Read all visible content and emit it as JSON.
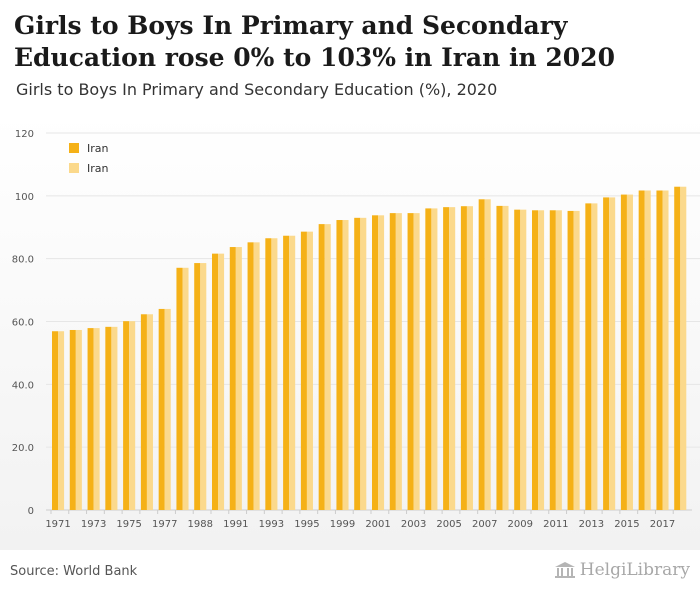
{
  "title": "Girls to Boys In Primary and Secondary Education rose 0% to 103% in Iran in 2020",
  "subtitle": "Girls to Boys In Primary and Secondary Education (%), 2020",
  "source": "Source: World Bank",
  "brand": "HelgiLibrary",
  "colors": {
    "series1": "#f5b117",
    "series2": "#fbd98c",
    "grid": "#e6e6e6",
    "axis_text": "#555555"
  },
  "chart_data": {
    "type": "bar",
    "title": "Girls to Boys In Primary and Secondary Education (%), 2020",
    "xlabel": "",
    "ylabel": "",
    "ylim": [
      0,
      120
    ],
    "yticks": [
      0,
      20,
      40,
      60,
      80,
      100,
      120
    ],
    "ytick_labels": [
      "0",
      "20.0",
      "40.0",
      "60.0",
      "80.0",
      "100",
      "120"
    ],
    "grid": true,
    "legend_position": "top-left",
    "categories": [
      "1971",
      "1972",
      "1973",
      "1974",
      "1975",
      "1976",
      "1977",
      "1978",
      "1988",
      "1989",
      "1991",
      "1992",
      "1993",
      "1994",
      "1995",
      "1996",
      "1999",
      "2000",
      "2001",
      "2002",
      "2003",
      "2004",
      "2005",
      "2006",
      "2007",
      "2008",
      "2009",
      "2010",
      "2011",
      "2012",
      "2013",
      "2014",
      "2015",
      "2016",
      "2017",
      "2018"
    ],
    "tick_labels": [
      "1971",
      "1973",
      "1975",
      "1977",
      "1988",
      "1991",
      "1993",
      "1995",
      "1999",
      "2001",
      "2003",
      "2005",
      "2007",
      "2009",
      "2011",
      "2013",
      "2015",
      "2017"
    ],
    "series": [
      {
        "name": "Iran",
        "values": [
          56.9,
          57.3,
          57.9,
          58.3,
          60.1,
          62.3,
          64.0,
          77.1,
          78.6,
          81.6,
          83.7,
          85.2,
          86.5,
          87.3,
          88.6,
          91.0,
          92.3,
          93.0,
          93.8,
          94.5,
          94.5,
          96.0,
          96.4,
          96.7,
          98.9,
          96.8,
          95.6,
          95.4,
          95.4,
          95.2,
          97.6,
          99.5,
          100.4,
          101.7,
          101.7,
          102.9
        ]
      },
      {
        "name": "Iran",
        "values": [
          56.9,
          57.3,
          57.9,
          58.3,
          60.1,
          62.3,
          64.0,
          77.1,
          78.6,
          81.6,
          83.7,
          85.2,
          86.5,
          87.3,
          88.6,
          91.0,
          92.3,
          93.0,
          93.8,
          94.5,
          94.5,
          96.0,
          96.4,
          96.7,
          98.9,
          96.8,
          95.6,
          95.4,
          95.4,
          95.2,
          97.6,
          99.5,
          100.4,
          101.7,
          101.7,
          102.9
        ]
      }
    ]
  }
}
